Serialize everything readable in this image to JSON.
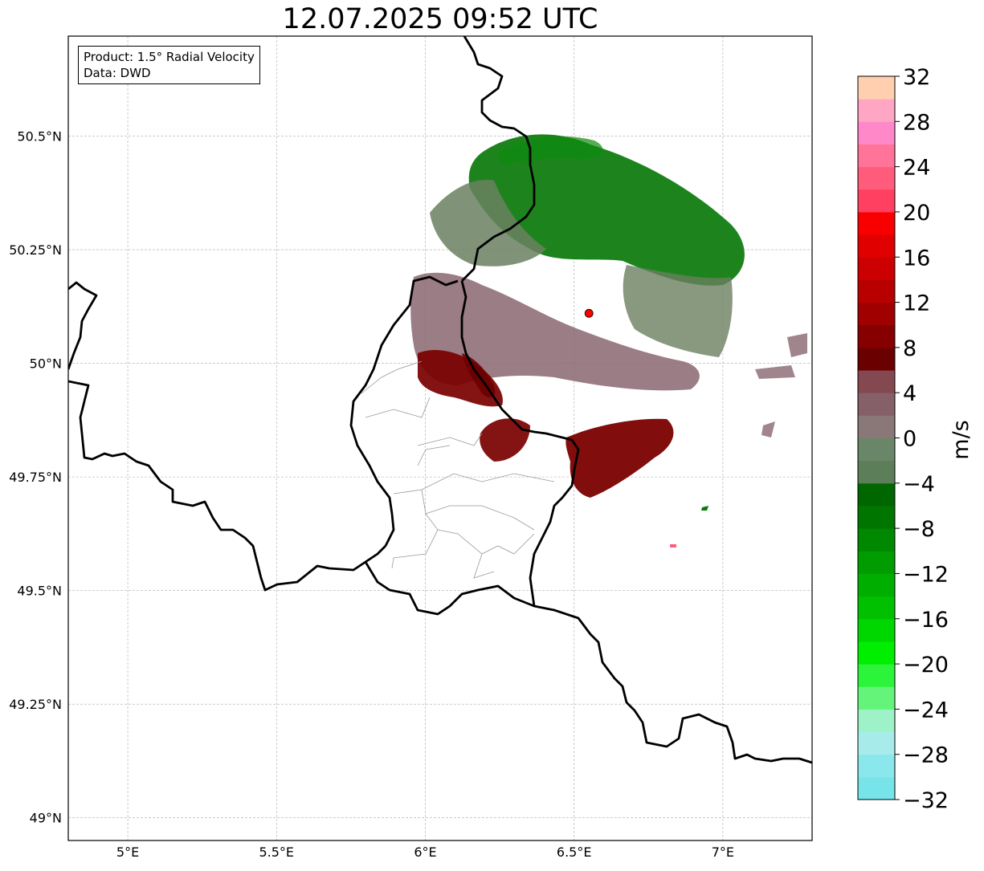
{
  "title": "12.07.2025 09:52 UTC",
  "info": {
    "product": "Product: 1.5° Radial Velocity",
    "source": "Data: DWD"
  },
  "map": {
    "lon_range": [
      4.8,
      7.3
    ],
    "lat_range": [
      48.95,
      50.72
    ],
    "x_ticks": [
      {
        "value": 5.0,
        "label": "5°E"
      },
      {
        "value": 5.5,
        "label": "5.5°E"
      },
      {
        "value": 6.0,
        "label": "6°E"
      },
      {
        "value": 6.5,
        "label": "6.5°E"
      },
      {
        "value": 7.0,
        "label": "7°E"
      }
    ],
    "y_ticks": [
      {
        "value": 50.5,
        "label": "50.5°N"
      },
      {
        "value": 50.25,
        "label": "50.25°N"
      },
      {
        "value": 50.0,
        "label": "50°N"
      },
      {
        "value": 49.75,
        "label": "49.75°N"
      },
      {
        "value": 49.5,
        "label": "49.5°N"
      },
      {
        "value": 49.25,
        "label": "49.25°N"
      },
      {
        "value": 49.0,
        "label": "49°N"
      }
    ],
    "grid": true,
    "radar_site": {
      "lon": 6.55,
      "lat": 50.11,
      "color": "#ff0000"
    }
  },
  "colorbar": {
    "label": "m/s",
    "min": -32,
    "max": 32,
    "ticks": [
      {
        "value": 32,
        "label": "32"
      },
      {
        "value": 28,
        "label": "28"
      },
      {
        "value": 24,
        "label": "24"
      },
      {
        "value": 20,
        "label": "20"
      },
      {
        "value": 16,
        "label": "16"
      },
      {
        "value": 12,
        "label": "12"
      },
      {
        "value": 8,
        "label": "8"
      },
      {
        "value": 4,
        "label": "4"
      },
      {
        "value": 0,
        "label": "0"
      },
      {
        "value": -4,
        "label": "−4"
      },
      {
        "value": -8,
        "label": "−8"
      },
      {
        "value": -12,
        "label": "−12"
      },
      {
        "value": -16,
        "label": "−16"
      },
      {
        "value": -20,
        "label": "−20"
      },
      {
        "value": -24,
        "label": "−24"
      },
      {
        "value": -28,
        "label": "−28"
      },
      {
        "value": -32,
        "label": "−32"
      }
    ],
    "colors_low_to_high": [
      "#76e4e8",
      "#8ae8ec",
      "#a8ebeb",
      "#9ef2c8",
      "#64f47a",
      "#2cf43a",
      "#00ee00",
      "#00d600",
      "#00c000",
      "#00ae00",
      "#009c00",
      "#008800",
      "#007600",
      "#006600",
      "#5c7e58",
      "#6a8668",
      "#8a7878",
      "#866068",
      "#844850",
      "#6a0000",
      "#860000",
      "#a00000",
      "#b80000",
      "#cc0000",
      "#e00000",
      "#f80000",
      "#ff4060",
      "#ff5c7c",
      "#ff7498",
      "#ff88c8",
      "#ffa6c4",
      "#ffcfaf"
    ]
  },
  "colors": {
    "approaching_green": "#0a7a0a",
    "approaching_grey": "#6a8060",
    "receding_grey": "#8a6670",
    "receding_dark": "#7a0000"
  }
}
